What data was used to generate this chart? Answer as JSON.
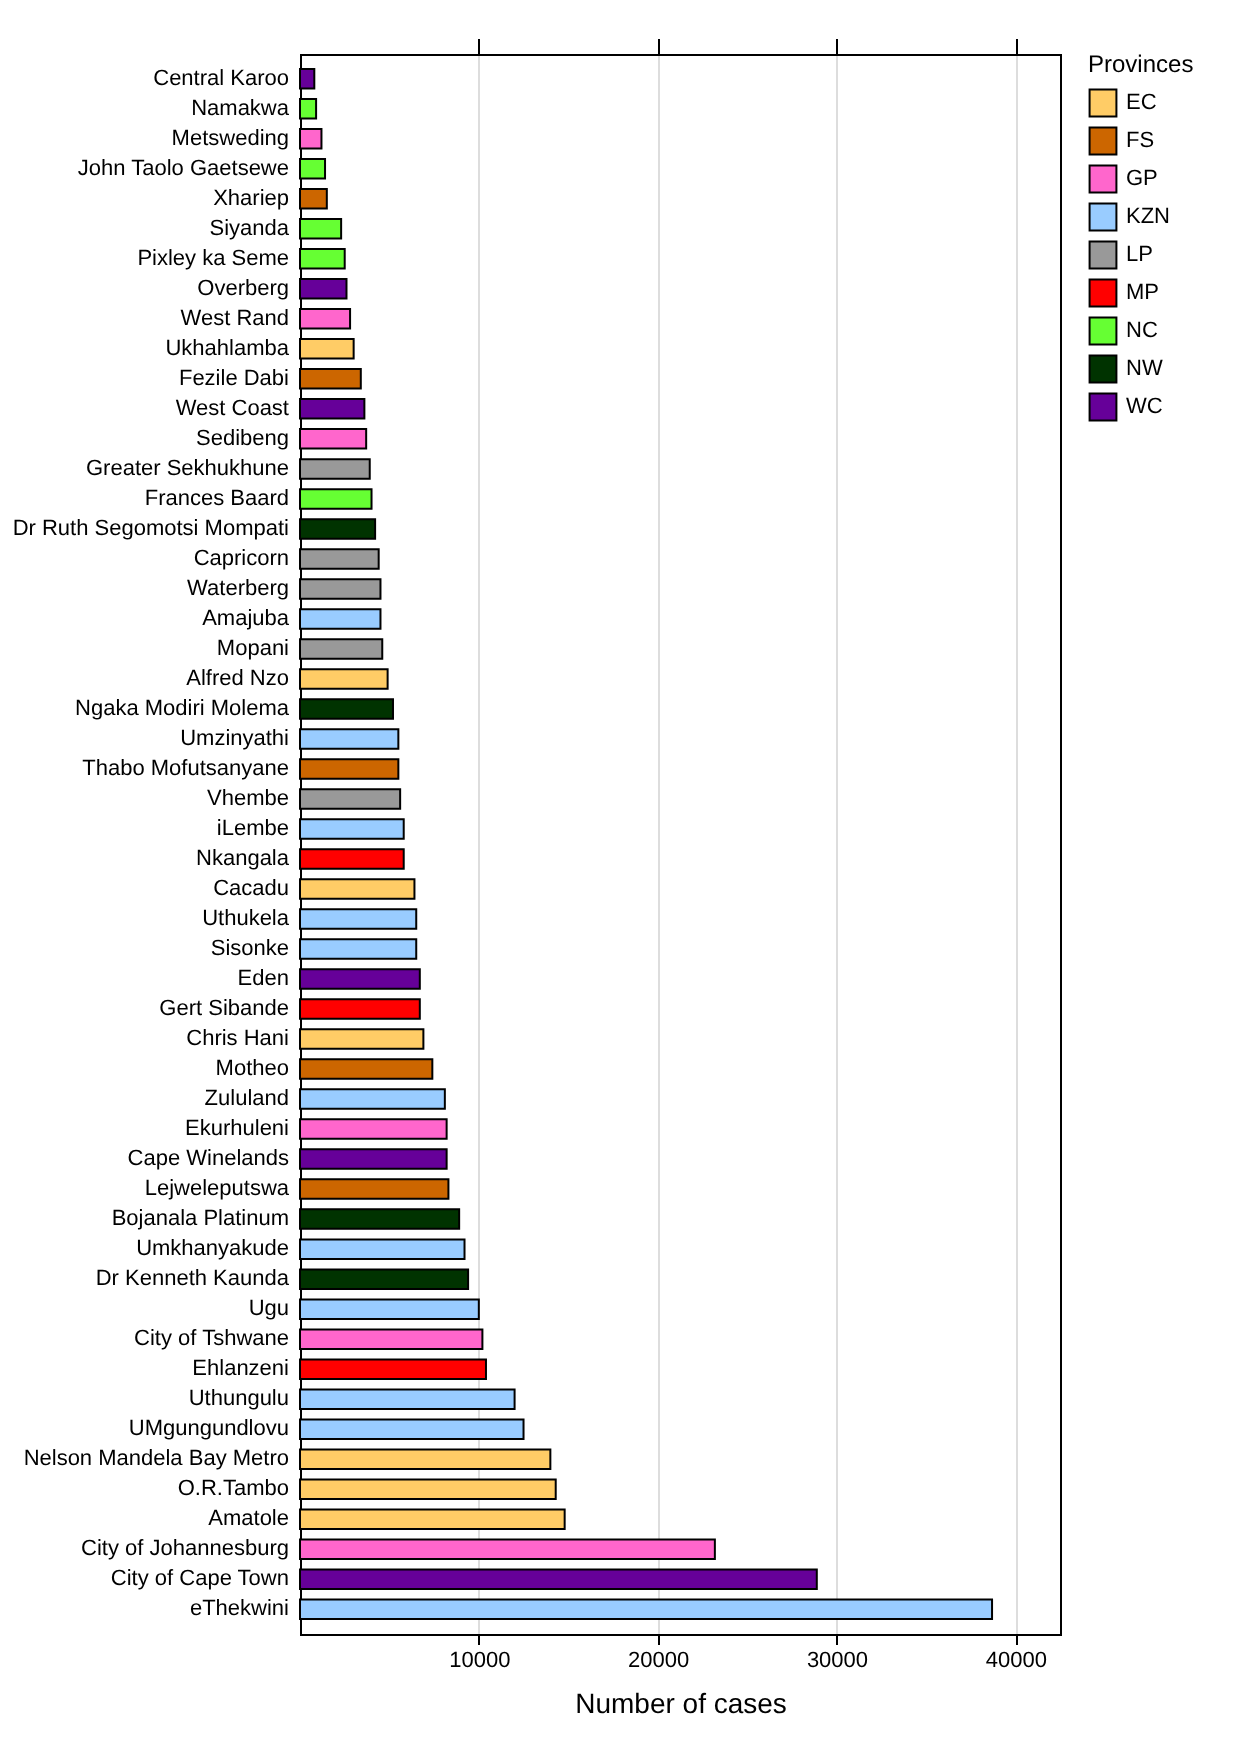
{
  "chart_data": {
    "type": "bar",
    "orientation": "horizontal",
    "xlabel": "Number of cases",
    "legend_title": "Provinces",
    "legend": "right",
    "grid": "x",
    "xlim": [
      0,
      42500
    ],
    "xticks": [
      10000,
      20000,
      30000,
      40000
    ],
    "categories": [
      "Central Karoo",
      "Namakwa",
      "Metsweding",
      "John Taolo Gaetsewe",
      "Xhariep",
      "Siyanda",
      "Pixley ka Seme",
      "Overberg",
      "West Rand",
      "Ukhahlamba",
      "Fezile Dabi",
      "West Coast",
      "Sedibeng",
      "Greater Sekhukhune",
      "Frances Baard",
      "Dr Ruth Segomotsi Mompati",
      "Capricorn",
      "Waterberg",
      "Amajuba",
      "Mopani",
      "Alfred Nzo",
      "Ngaka Modiri Molema",
      "Umzinyathi",
      "Thabo Mofutsanyane",
      "Vhembe",
      "iLembe",
      "Nkangala",
      "Cacadu",
      "Uthukela",
      "Sisonke",
      "Eden",
      "Gert Sibande",
      "Chris Hani",
      "Motheo",
      "Zululand",
      "Ekurhuleni",
      "Cape Winelands",
      "Lejweleputswa",
      "Bojanala Platinum",
      "Umkhanyakude",
      "Dr Kenneth Kaunda",
      "Ugu",
      "City of Tshwane",
      "Ehlanzeni",
      "Uthungulu",
      "UMgungundlovu",
      "Nelson Mandela Bay Metro",
      "O.R.Tambo",
      "Amatole",
      "City of Johannesburg",
      "City of Cape Town",
      "eThekwini"
    ],
    "series": [
      {
        "name": "EC",
        "color": "#ffcc66",
        "values": [
          null,
          null,
          null,
          null,
          null,
          null,
          null,
          null,
          null,
          3000,
          null,
          null,
          null,
          null,
          null,
          null,
          null,
          null,
          null,
          null,
          4900,
          null,
          null,
          null,
          null,
          null,
          null,
          6400,
          null,
          null,
          null,
          null,
          6900,
          null,
          null,
          null,
          null,
          null,
          null,
          null,
          null,
          null,
          null,
          null,
          null,
          null,
          14000,
          14300,
          14800,
          null,
          null,
          null
        ]
      },
      {
        "name": "FS",
        "color": "#cc6600",
        "values": [
          null,
          null,
          null,
          null,
          1500,
          null,
          null,
          null,
          null,
          null,
          3400,
          null,
          null,
          null,
          null,
          null,
          null,
          null,
          null,
          null,
          null,
          null,
          null,
          5500,
          null,
          null,
          null,
          null,
          null,
          null,
          null,
          null,
          null,
          7400,
          null,
          null,
          null,
          8300,
          null,
          null,
          null,
          null,
          null,
          null,
          null,
          null,
          null,
          null,
          null,
          null,
          null,
          null
        ]
      },
      {
        "name": "GP",
        "color": "#ff66cc",
        "values": [
          null,
          null,
          1200,
          null,
          null,
          null,
          null,
          null,
          2800,
          null,
          null,
          null,
          3700,
          null,
          null,
          null,
          null,
          null,
          null,
          null,
          null,
          null,
          null,
          null,
          null,
          null,
          null,
          null,
          null,
          null,
          null,
          null,
          null,
          null,
          null,
          8200,
          null,
          null,
          null,
          null,
          null,
          null,
          10200,
          null,
          null,
          null,
          null,
          null,
          null,
          23200,
          null,
          null
        ]
      },
      {
        "name": "KZN",
        "color": "#99ccff",
        "values": [
          null,
          null,
          null,
          null,
          null,
          null,
          null,
          null,
          null,
          null,
          null,
          null,
          null,
          null,
          null,
          null,
          null,
          null,
          4500,
          null,
          null,
          null,
          5500,
          null,
          null,
          5800,
          null,
          null,
          6500,
          6500,
          null,
          null,
          null,
          null,
          8100,
          null,
          null,
          null,
          null,
          9200,
          null,
          10000,
          null,
          null,
          12000,
          12500,
          null,
          null,
          null,
          null,
          null,
          38700
        ]
      },
      {
        "name": "LP",
        "color": "#999999",
        "values": [
          null,
          null,
          null,
          null,
          null,
          null,
          null,
          null,
          null,
          null,
          null,
          null,
          null,
          3900,
          null,
          null,
          4400,
          4500,
          null,
          4600,
          null,
          null,
          null,
          null,
          5600,
          null,
          null,
          null,
          null,
          null,
          null,
          null,
          null,
          null,
          null,
          null,
          null,
          null,
          null,
          null,
          null,
          null,
          null,
          null,
          null,
          null,
          null,
          null,
          null,
          null,
          null,
          null
        ]
      },
      {
        "name": "MP",
        "color": "#ff0000",
        "values": [
          null,
          null,
          null,
          null,
          null,
          null,
          null,
          null,
          null,
          null,
          null,
          null,
          null,
          null,
          null,
          null,
          null,
          null,
          null,
          null,
          null,
          null,
          null,
          null,
          null,
          null,
          5800,
          null,
          null,
          null,
          null,
          6700,
          null,
          null,
          null,
          null,
          null,
          null,
          null,
          null,
          null,
          null,
          null,
          10400,
          null,
          null,
          null,
          null,
          null,
          null,
          null,
          null
        ]
      },
      {
        "name": "NC",
        "color": "#66ff33",
        "values": [
          null,
          900,
          null,
          1400,
          null,
          2300,
          2500,
          null,
          null,
          null,
          null,
          null,
          null,
          null,
          4000,
          null,
          null,
          null,
          null,
          null,
          null,
          null,
          null,
          null,
          null,
          null,
          null,
          null,
          null,
          null,
          null,
          null,
          null,
          null,
          null,
          null,
          null,
          null,
          null,
          null,
          null,
          null,
          null,
          null,
          null,
          null,
          null,
          null,
          null,
          null,
          null,
          null
        ]
      },
      {
        "name": "NW",
        "color": "#003300",
        "values": [
          null,
          null,
          null,
          null,
          null,
          null,
          null,
          null,
          null,
          null,
          null,
          null,
          null,
          null,
          null,
          4200,
          null,
          null,
          null,
          null,
          null,
          5200,
          null,
          null,
          null,
          null,
          null,
          null,
          null,
          null,
          null,
          null,
          null,
          null,
          null,
          null,
          null,
          null,
          8900,
          null,
          9400,
          null,
          null,
          null,
          null,
          null,
          null,
          null,
          null,
          null,
          null,
          null
        ]
      },
      {
        "name": "WC",
        "color": "#660099",
        "values": [
          800,
          null,
          null,
          null,
          null,
          null,
          null,
          2600,
          null,
          null,
          null,
          3600,
          null,
          null,
          null,
          null,
          null,
          null,
          null,
          null,
          null,
          null,
          null,
          null,
          null,
          null,
          null,
          null,
          null,
          null,
          6700,
          null,
          null,
          null,
          null,
          null,
          8200,
          null,
          null,
          null,
          null,
          null,
          null,
          null,
          null,
          null,
          null,
          null,
          null,
          null,
          28900,
          null
        ]
      }
    ]
  }
}
